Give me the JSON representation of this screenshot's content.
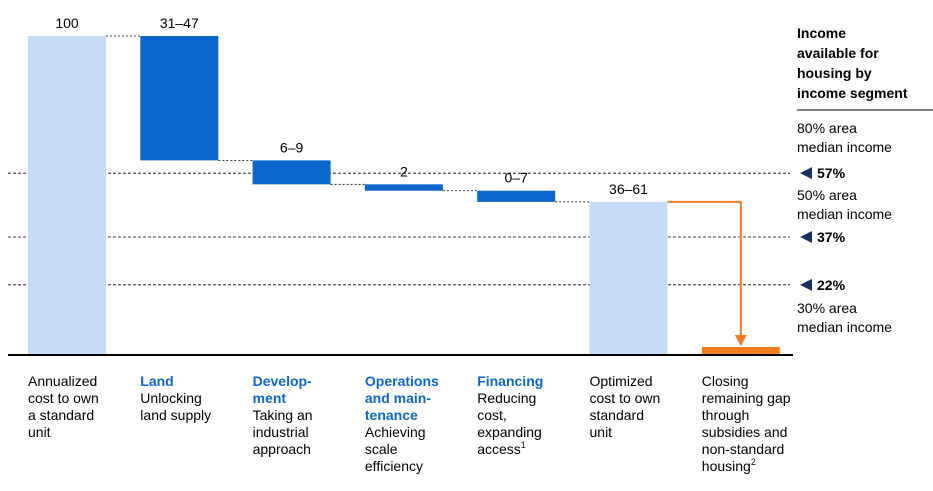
{
  "chart_data": {
    "type": "waterfall",
    "categories": [
      {
        "body": [
          "Annualized",
          "cost to own",
          "a standard",
          "unit"
        ]
      },
      {
        "heading": [
          "Land"
        ],
        "body": [
          "Unlocking",
          "land supply"
        ]
      },
      {
        "heading": [
          "Develop-",
          "ment"
        ],
        "body": [
          "Taking an",
          "industrial",
          "approach"
        ]
      },
      {
        "heading": [
          "Operations",
          "and main-",
          "tenance"
        ],
        "body": [
          "Achieving",
          "scale",
          "efficiency"
        ]
      },
      {
        "heading": [
          "Financing"
        ],
        "body": [
          "Reducing",
          "cost,",
          "expanding",
          "access"
        ],
        "note": "1"
      },
      {
        "body": [
          "Optimized",
          "cost to own",
          "standard",
          "unit"
        ]
      },
      {
        "body": [
          "Closing",
          "remaining gap",
          "through",
          "subsidies and",
          "non-standard",
          "housing"
        ],
        "note": "2"
      }
    ],
    "values": [
      100,
      -39,
      -7.5,
      -2,
      -3.5,
      48,
      2.5
    ],
    "kinds": [
      "total",
      "delta",
      "delta",
      "delta",
      "delta",
      "total",
      "total"
    ],
    "value_labels": [
      "100",
      "31–47",
      "6–9",
      "2",
      "0–7",
      "36–61",
      null
    ],
    "colors": [
      "#c5dcf6",
      "#0b67cc",
      "#0b67cc",
      "#0b67cc",
      "#0b67cc",
      "#c5dcf6",
      "#f47b20"
    ],
    "ylim": [
      0,
      100
    ],
    "reference_lines": [
      {
        "value": 57,
        "label": "57%"
      },
      {
        "value": 37,
        "label": "37%"
      },
      {
        "value": 22,
        "label": "22%"
      }
    ],
    "side_title": [
      "Income",
      "available for",
      "housing by",
      "income segment"
    ],
    "side_annotations": [
      [
        "80% area",
        "median income"
      ],
      [
        "50% area",
        "median income"
      ],
      [
        "30% area",
        "median income"
      ]
    ]
  }
}
